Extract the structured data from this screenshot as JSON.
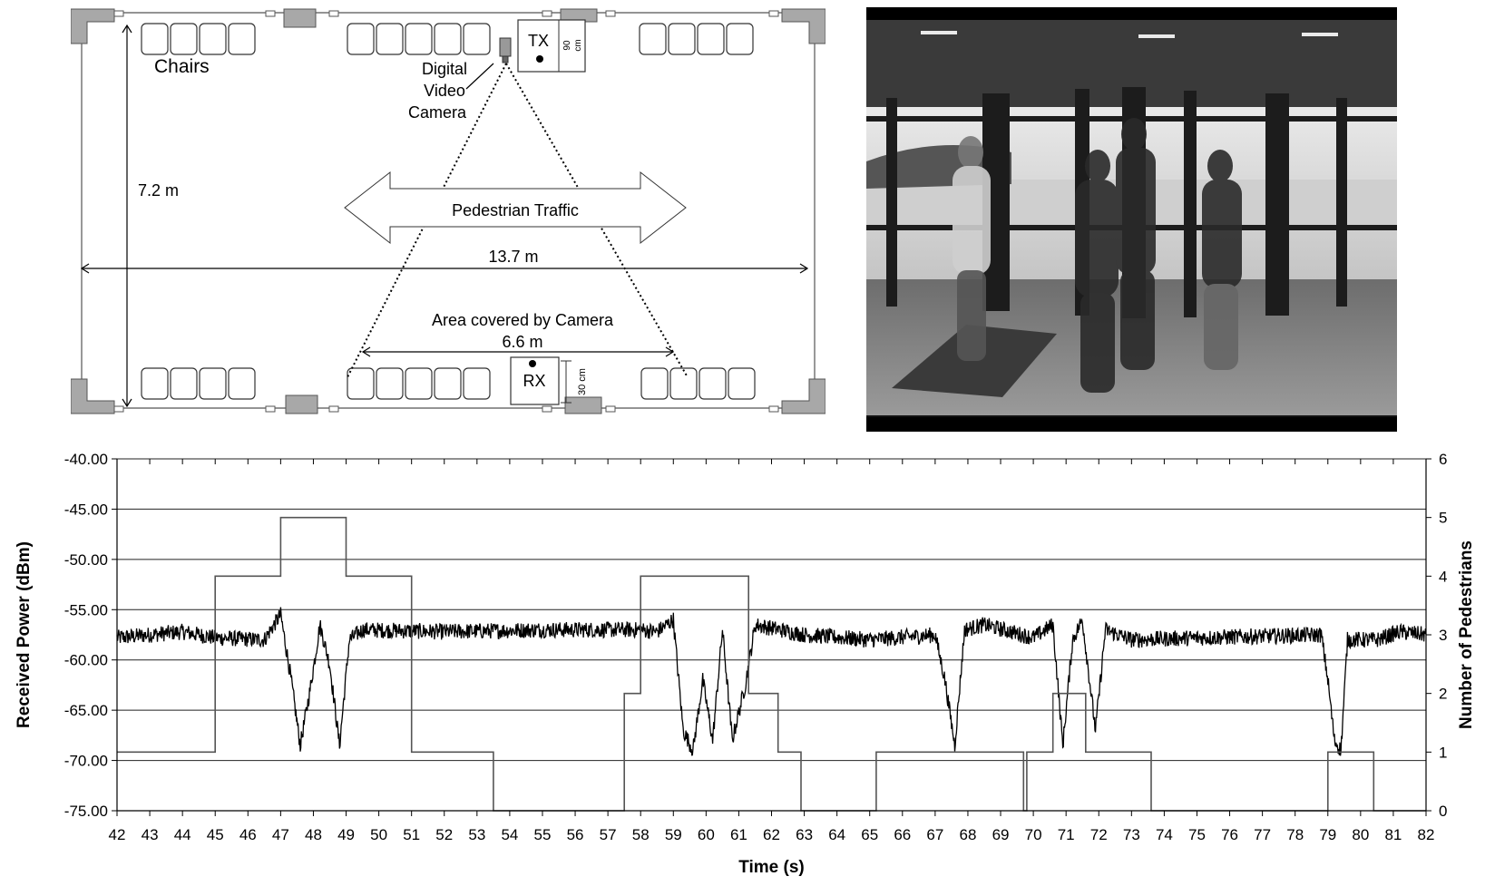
{
  "floorplan": {
    "chairs_label": "Chairs",
    "camera_label_lines": [
      "Digital",
      "Video",
      "Camera"
    ],
    "tx_label": "TX",
    "tx_dim": "90",
    "tx_dim_unit": "cm",
    "rx_label": "RX",
    "rx_dim": "30 cm",
    "height_label": "7.2 m",
    "width_label": "13.7 m",
    "traffic_label": "Pedestrian Traffic",
    "area_label": "Area covered by Camera",
    "coverage_label": "6.6 m"
  },
  "photo": {
    "subject": "monochrome-corridor-photo-pedestrians-walking"
  },
  "chart_data": {
    "type": "line",
    "xlabel": "Time (s)",
    "ylabel": "Received Power (dBm)",
    "y2label": "Number of Pedestrians",
    "xlim": [
      42,
      82
    ],
    "ylim": [
      -75,
      -40
    ],
    "y2lim": [
      0,
      6
    ],
    "x_ticks": [
      42,
      43,
      44,
      45,
      46,
      47,
      48,
      49,
      50,
      51,
      52,
      53,
      54,
      55,
      56,
      57,
      58,
      59,
      60,
      61,
      62,
      63,
      64,
      65,
      66,
      67,
      68,
      69,
      70,
      71,
      72,
      73,
      74,
      75,
      76,
      77,
      78,
      79,
      80,
      81,
      82
    ],
    "y_ticks": [
      "-40.00",
      "-45.00",
      "-50.00",
      "-55.00",
      "-60.00",
      "-65.00",
      "-70.00",
      "-75.00"
    ],
    "y2_ticks": [
      6,
      5,
      4,
      3,
      2,
      1,
      0
    ],
    "grid": "horizontal",
    "series": [
      {
        "axis": "left",
        "style": "noisy",
        "color": "#000000",
        "points": [
          [
            42,
            -57.8
          ],
          [
            44,
            -57.2
          ],
          [
            45,
            -57.8
          ],
          [
            46.5,
            -58.0
          ],
          [
            47.0,
            -55.5
          ],
          [
            47.3,
            -61.5
          ],
          [
            47.6,
            -68.5
          ],
          [
            47.9,
            -63.0
          ],
          [
            48.2,
            -56.5
          ],
          [
            48.5,
            -60.5
          ],
          [
            48.8,
            -68.5
          ],
          [
            49.1,
            -58.0
          ],
          [
            49.5,
            -57.0
          ],
          [
            52,
            -57.2
          ],
          [
            55,
            -57.0
          ],
          [
            58,
            -57.0
          ],
          [
            58.5,
            -57.2
          ],
          [
            59.0,
            -56.0
          ],
          [
            59.3,
            -67.0
          ],
          [
            59.6,
            -69.0
          ],
          [
            59.9,
            -62.0
          ],
          [
            60.2,
            -68.0
          ],
          [
            60.5,
            -57.0
          ],
          [
            60.8,
            -68.0
          ],
          [
            61.2,
            -62.5
          ],
          [
            61.5,
            -56.5
          ],
          [
            63,
            -57.5
          ],
          [
            65,
            -58.0
          ],
          [
            67,
            -57.5
          ],
          [
            67.3,
            -62.0
          ],
          [
            67.6,
            -68.5
          ],
          [
            67.9,
            -57.0
          ],
          [
            68.5,
            -56.5
          ],
          [
            70,
            -57.8
          ],
          [
            70.6,
            -56.5
          ],
          [
            70.9,
            -68.5
          ],
          [
            71.2,
            -58.0
          ],
          [
            71.5,
            -56.0
          ],
          [
            71.9,
            -67.0
          ],
          [
            72.2,
            -57.0
          ],
          [
            73,
            -58.0
          ],
          [
            75,
            -57.8
          ],
          [
            78.8,
            -57.5
          ],
          [
            79.0,
            -62.0
          ],
          [
            79.2,
            -68.0
          ],
          [
            79.4,
            -69.0
          ],
          [
            79.6,
            -58.0
          ],
          [
            80.5,
            -58.0
          ],
          [
            81.2,
            -57.2
          ],
          [
            82,
            -57.5
          ]
        ]
      },
      {
        "axis": "right",
        "style": "step",
        "color": "#555555",
        "points": [
          [
            42,
            1
          ],
          [
            45,
            1
          ],
          [
            45,
            4
          ],
          [
            47,
            4
          ],
          [
            47,
            5
          ],
          [
            49,
            5
          ],
          [
            49,
            4
          ],
          [
            51,
            4
          ],
          [
            51,
            1
          ],
          [
            53.5,
            1
          ],
          [
            53.5,
            0
          ],
          [
            57.5,
            0
          ],
          [
            57.5,
            2
          ],
          [
            58,
            2
          ],
          [
            58,
            4
          ],
          [
            61.3,
            4
          ],
          [
            61.3,
            2
          ],
          [
            62.2,
            2
          ],
          [
            62.2,
            1
          ],
          [
            62.9,
            1
          ],
          [
            62.9,
            0
          ],
          [
            65.2,
            0
          ],
          [
            65.2,
            1
          ],
          [
            69.7,
            1
          ],
          [
            69.7,
            0
          ],
          [
            69.8,
            0
          ],
          [
            69.8,
            1
          ],
          [
            70.6,
            1
          ],
          [
            70.6,
            2
          ],
          [
            71.6,
            2
          ],
          [
            71.6,
            1
          ],
          [
            73.6,
            1
          ],
          [
            73.6,
            0
          ],
          [
            79,
            0
          ],
          [
            79,
            1
          ],
          [
            80.4,
            1
          ],
          [
            80.4,
            0
          ],
          [
            82,
            0
          ]
        ]
      }
    ]
  }
}
